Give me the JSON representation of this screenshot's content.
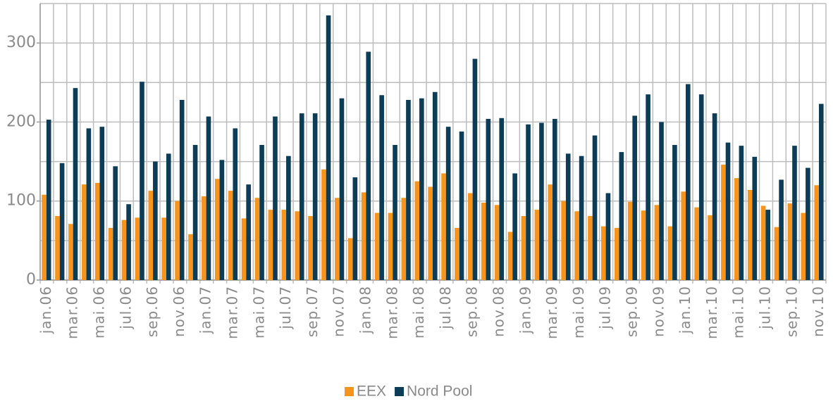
{
  "chart_data": {
    "type": "bar",
    "categories": [
      "jan.06",
      null,
      "mar.06",
      null,
      "mai.06",
      null,
      "jul.06",
      null,
      "sep.06",
      null,
      "nov.06",
      null,
      "jan.07",
      null,
      "mar.07",
      null,
      "mai.07",
      null,
      "jul.07",
      null,
      "sep.07",
      null,
      "nov.07",
      null,
      "jan.08",
      null,
      "mar.08",
      null,
      "mai.08",
      null,
      "jul.08",
      null,
      "sep.08",
      null,
      "nov.08",
      null,
      "jan.09",
      null,
      "mar.09",
      null,
      "mai.09",
      null,
      "jul.09",
      null,
      "sep.09",
      null,
      "nov.09",
      null,
      "jan.10",
      null,
      "mar.10",
      null,
      "mai.10",
      null,
      "jul.10",
      null,
      "sep.10",
      null,
      "nov.10"
    ],
    "series": [
      {
        "name": "EEX",
        "color": "#f7941d",
        "values": [
          108,
          81,
          71,
          121,
          123,
          66,
          76,
          79,
          113,
          79,
          100,
          58,
          106,
          128,
          113,
          78,
          104,
          89,
          89,
          87,
          81,
          140,
          104,
          53,
          111,
          85,
          85,
          104,
          125,
          118,
          135,
          66,
          110,
          98,
          95,
          61,
          81,
          89,
          121,
          100,
          87,
          81,
          68,
          66,
          99,
          88,
          95,
          68,
          112,
          92,
          82,
          146,
          129,
          114,
          94,
          67,
          97,
          85,
          120
        ]
      },
      {
        "name": "Nord Pool",
        "color": "#0d3d56",
        "values": [
          203,
          148,
          243,
          192,
          194,
          144,
          96,
          251,
          150,
          160,
          228,
          171,
          207,
          152,
          192,
          121,
          171,
          207,
          157,
          211,
          211,
          335,
          230,
          130,
          289,
          234,
          171,
          228,
          230,
          238,
          194,
          188,
          280,
          204,
          205,
          135,
          197,
          199,
          204,
          160,
          157,
          183,
          110,
          162,
          208,
          235,
          200,
          171,
          248,
          235,
          211,
          174,
          170,
          156,
          89,
          127,
          170,
          142,
          223
        ]
      }
    ],
    "ylim": [
      0,
      350
    ],
    "yticks": [
      0,
      100,
      200,
      300
    ],
    "ygrid": [
      0,
      50,
      100,
      150,
      200,
      250,
      300,
      350
    ],
    "legend": "bottom"
  }
}
